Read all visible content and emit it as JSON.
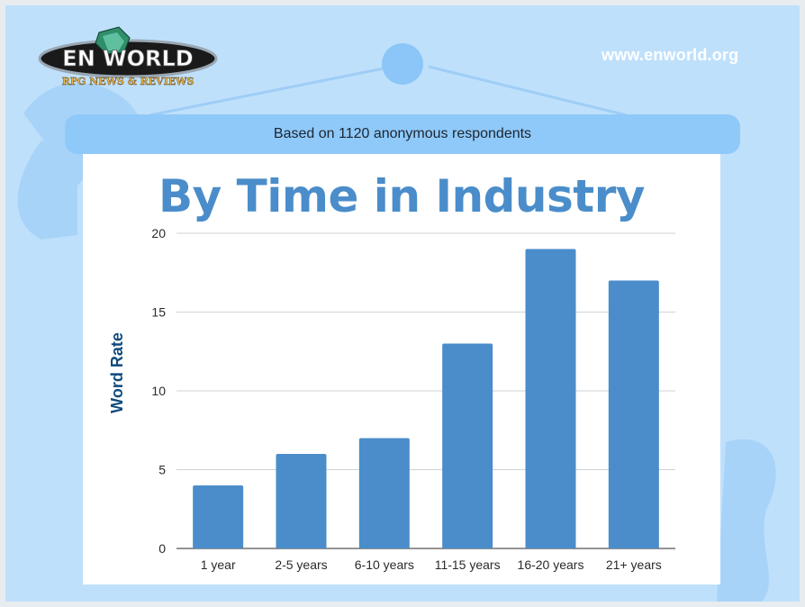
{
  "header": {
    "logo_text": "EN WORLD",
    "logo_tagline": "RPG NEWS & REVIEWS",
    "site_url": "www.enworld.org",
    "subtitle": "Based on 1120 anonymous respondents"
  },
  "colors": {
    "background": "#bfe0fb",
    "bar": "#4a8dca",
    "title": "#4a8dca",
    "ylabel": "#0f4a7d"
  },
  "chart_data": {
    "type": "bar",
    "title": "By Time in Industry",
    "xlabel": "",
    "ylabel": "Word Rate",
    "categories": [
      "1 year",
      "2-5 years",
      "6-10 years",
      "11-15 years",
      "16-20 years",
      "21+ years"
    ],
    "values": [
      4,
      6,
      7,
      13,
      19,
      17
    ],
    "ylim": [
      0,
      20
    ],
    "yticks": [
      0,
      5,
      10,
      15,
      20
    ],
    "grid": true,
    "legend": "none"
  }
}
